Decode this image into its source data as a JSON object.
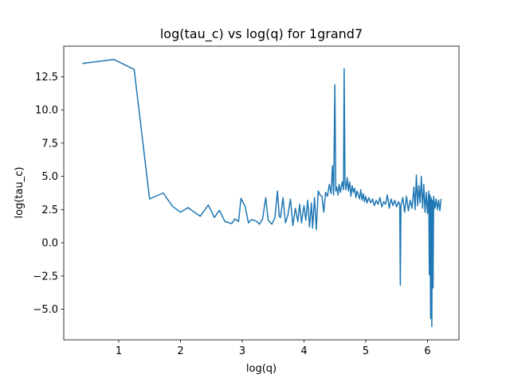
{
  "chart_data": {
    "type": "line",
    "title": "log(tau_c) vs log(q) for 1grand7",
    "x_label": "log(q)",
    "y_label": "log(tau_c)",
    "xlim": [
      0.11,
      6.51
    ],
    "ylim": [
      -7.3,
      14.8
    ],
    "xticks": [
      1,
      2,
      3,
      4,
      5,
      6
    ],
    "yticks": [
      {
        "value": -5,
        "label": "−5.0"
      },
      {
        "value": -2.5,
        "label": "−2.5"
      },
      {
        "value": 0,
        "label": "0.0"
      },
      {
        "value": 2.5,
        "label": "2.5"
      },
      {
        "value": 5,
        "label": "5.0"
      },
      {
        "value": 7.5,
        "label": "7.5"
      },
      {
        "value": 10,
        "label": "10.0"
      },
      {
        "value": 12.5,
        "label": "12.5"
      }
    ],
    "grid": false,
    "x": [
      0.41,
      0.92,
      1.25,
      1.5,
      1.72,
      1.87,
      2.0,
      2.12,
      2.32,
      2.45,
      2.55,
      2.63,
      2.72,
      2.83,
      2.88,
      2.94,
      2.98,
      3.05,
      3.1,
      3.15,
      3.22,
      3.28,
      3.33,
      3.38,
      3.42,
      3.48,
      3.53,
      3.57,
      3.6,
      3.62,
      3.66,
      3.7,
      3.74,
      3.78,
      3.82,
      3.86,
      3.9,
      3.93,
      3.96,
      4.0,
      4.03,
      4.06,
      4.09,
      4.12,
      4.14,
      4.17,
      4.2,
      4.23,
      4.26,
      4.29,
      4.32,
      4.35,
      4.38,
      4.41,
      4.44,
      4.46,
      4.48,
      4.5,
      4.515,
      4.53,
      4.55,
      4.57,
      4.59,
      4.62,
      4.64,
      4.65,
      4.665,
      4.68,
      4.7,
      4.72,
      4.74,
      4.76,
      4.78,
      4.8,
      4.82,
      4.84,
      4.86,
      4.88,
      4.9,
      4.92,
      4.94,
      4.96,
      4.98,
      5.0,
      5.02,
      5.05,
      5.08,
      5.11,
      5.14,
      5.17,
      5.2,
      5.23,
      5.26,
      5.29,
      5.32,
      5.35,
      5.38,
      5.41,
      5.44,
      5.47,
      5.5,
      5.53,
      5.55,
      5.56,
      5.57,
      5.6,
      5.63,
      5.66,
      5.69,
      5.72,
      5.75,
      5.78,
      5.8,
      5.82,
      5.84,
      5.86,
      5.88,
      5.9,
      5.92,
      5.94,
      5.96,
      5.98,
      6.0,
      6.02,
      6.03,
      6.04,
      6.05,
      6.06,
      6.07,
      6.08,
      6.09,
      6.1,
      6.12,
      6.14,
      6.16,
      6.18,
      6.2,
      6.22
    ],
    "series": [
      {
        "name": "log(tau_c)",
        "color": "#1f77b4",
        "values": [
          13.5,
          13.8,
          13.05,
          3.3,
          3.75,
          2.75,
          2.3,
          2.65,
          2.0,
          2.85,
          1.9,
          2.45,
          1.6,
          1.45,
          1.8,
          1.6,
          3.35,
          2.7,
          1.5,
          1.75,
          1.65,
          1.4,
          1.8,
          3.4,
          1.7,
          1.4,
          1.9,
          3.9,
          2.0,
          1.9,
          3.4,
          1.5,
          2.1,
          3.3,
          1.3,
          2.6,
          1.6,
          2.9,
          1.5,
          2.8,
          1.7,
          3.2,
          1.2,
          3.0,
          1.1,
          3.4,
          1.0,
          3.9,
          3.6,
          3.5,
          2.3,
          3.8,
          3.5,
          4.4,
          3.7,
          5.8,
          3.6,
          11.9,
          3.9,
          4.2,
          3.6,
          4.4,
          3.8,
          4.6,
          4.0,
          13.1,
          4.5,
          4.0,
          4.9,
          3.9,
          4.6,
          3.5,
          4.3,
          3.8,
          4.1,
          3.4,
          3.9,
          3.6,
          3.3,
          4.0,
          3.2,
          3.7,
          3.1,
          3.5,
          3.0,
          3.4,
          3.0,
          3.3,
          2.8,
          3.2,
          2.9,
          3.4,
          2.7,
          3.1,
          2.9,
          3.6,
          2.6,
          3.3,
          2.8,
          3.2,
          2.7,
          3.1,
          2.9,
          -3.2,
          2.8,
          3.4,
          2.3,
          3.5,
          2.4,
          3.2,
          2.6,
          4.2,
          2.5,
          5.1,
          2.8,
          4.3,
          3.0,
          5.0,
          2.6,
          4.4,
          2.3,
          3.8,
          2.2,
          3.9,
          -2.4,
          3.6,
          -5.7,
          3.4,
          -6.3,
          3.2,
          -3.4,
          3.5,
          2.6,
          3.3,
          2.5,
          3.2,
          2.4,
          3.3
        ]
      }
    ]
  }
}
